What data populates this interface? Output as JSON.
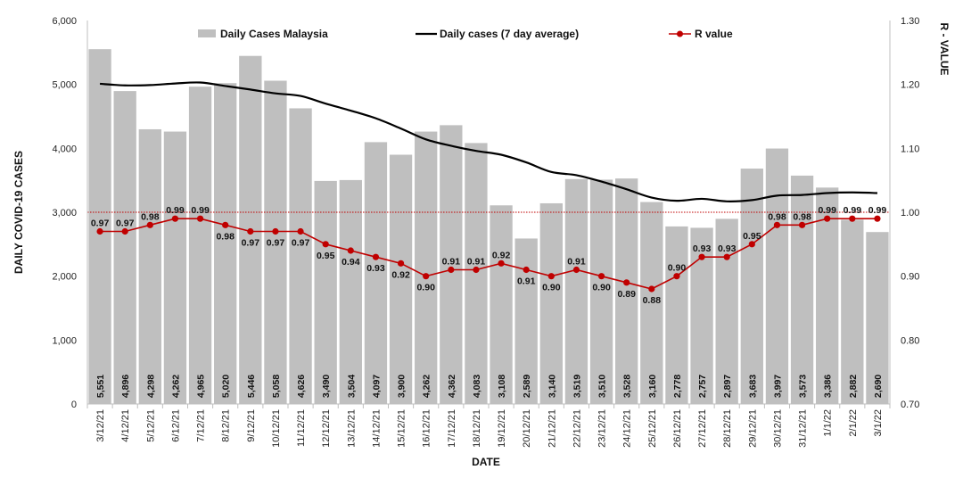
{
  "colors": {
    "bar": "#bfbfbf",
    "avg_line": "#000000",
    "r_line": "#c00000",
    "reference_line": "#c00000",
    "axis": "#bfbfbf"
  },
  "chart_data": {
    "type": "bar",
    "title": "",
    "xlabel": "DATE",
    "ylabel": "DAILY COVID-19 CASES",
    "y2label": "R - VALUE",
    "ylim": [
      0,
      6000
    ],
    "y_ticks": [
      "0",
      "1,000",
      "2,000",
      "3,000",
      "4,000",
      "5,000",
      "6,000"
    ],
    "y2lim": [
      0.7,
      1.3
    ],
    "y2_ticks": [
      "0.70",
      "0.80",
      "0.90",
      "1.00",
      "1.10",
      "1.20",
      "1.30"
    ],
    "reference_y2": 1.0,
    "grid": false,
    "legend_position": "top",
    "categories": [
      "3/12/21",
      "4/12/21",
      "5/12/21",
      "6/12/21",
      "7/12/21",
      "8/12/21",
      "9/12/21",
      "10/12/21",
      "11/12/21",
      "12/12/21",
      "13/12/21",
      "14/12/21",
      "15/12/21",
      "16/12/21",
      "17/12/21",
      "18/12/21",
      "19/12/21",
      "20/12/21",
      "21/12/21",
      "22/12/21",
      "23/12/21",
      "24/12/21",
      "25/12/21",
      "26/12/21",
      "27/12/21",
      "28/12/21",
      "29/12/21",
      "30/12/21",
      "31/12/21",
      "1/1/22",
      "2/1/22",
      "3/1/22"
    ],
    "series": [
      {
        "name": "Daily Cases Malaysia",
        "type": "bar",
        "axis": "left",
        "values": [
          5551,
          4896,
          4298,
          4262,
          4965,
          5020,
          5446,
          5058,
          4626,
          3490,
          3504,
          4097,
          3900,
          4262,
          4362,
          4083,
          3108,
          2589,
          3140,
          3519,
          3510,
          3528,
          3160,
          2778,
          2757,
          2897,
          3683,
          3997,
          3573,
          3386,
          2882,
          2690
        ],
        "labels": [
          "5,551",
          "4,896",
          "4,298",
          "4,262",
          "4,965",
          "5,020",
          "5,446",
          "5,058",
          "4,626",
          "3,490",
          "3,504",
          "4,097",
          "3,900",
          "4,262",
          "4,362",
          "4,083",
          "3,108",
          "2,589",
          "3,140",
          "3,519",
          "3,510",
          "3,528",
          "3,160",
          "2,778",
          "2,757",
          "2,897",
          "3,683",
          "3,997",
          "3,573",
          "3,386",
          "2,882",
          "2,690"
        ]
      },
      {
        "name": "Daily cases (7 day average)",
        "type": "line",
        "axis": "left",
        "values": [
          5010,
          4985,
          4990,
          5015,
          5030,
          4975,
          4920,
          4860,
          4820,
          4700,
          4590,
          4470,
          4310,
          4140,
          4040,
          3960,
          3900,
          3780,
          3630,
          3580,
          3480,
          3360,
          3230,
          3180,
          3210,
          3170,
          3190,
          3260,
          3270,
          3300,
          3310,
          3300
        ]
      },
      {
        "name": "R value",
        "type": "line",
        "axis": "right",
        "values": [
          0.97,
          0.97,
          0.98,
          0.99,
          0.99,
          0.98,
          0.97,
          0.97,
          0.97,
          0.95,
          0.94,
          0.93,
          0.92,
          0.9,
          0.91,
          0.91,
          0.92,
          0.91,
          0.9,
          0.91,
          0.9,
          0.89,
          0.88,
          0.9,
          0.93,
          0.93,
          0.95,
          0.98,
          0.98,
          0.99,
          0.99,
          0.99
        ],
        "labels": [
          "0.97",
          "0.97",
          "0.98",
          "0.99",
          "0.99",
          "0.98",
          "0.97",
          "0.97",
          "0.97",
          "0.95",
          "0.94",
          "0.93",
          "0.92",
          "0.90",
          "0.91",
          "0.91",
          "0.92",
          "0.91",
          "0.90",
          "0.91",
          "0.90",
          "0.89",
          "0.88",
          "0.90",
          "0.93",
          "0.93",
          "0.95",
          "0.98",
          "0.98",
          "0.99",
          "0.99",
          "0.99"
        ],
        "label_side": [
          "up",
          "up",
          "up",
          "up",
          "up",
          "down",
          "down",
          "down",
          "down",
          "down",
          "down",
          "down",
          "down",
          "down",
          "up",
          "up",
          "up",
          "down",
          "down",
          "up",
          "down",
          "down",
          "down",
          "up",
          "up",
          "up",
          "up",
          "up",
          "up",
          "up",
          "up",
          "up"
        ]
      }
    ]
  }
}
